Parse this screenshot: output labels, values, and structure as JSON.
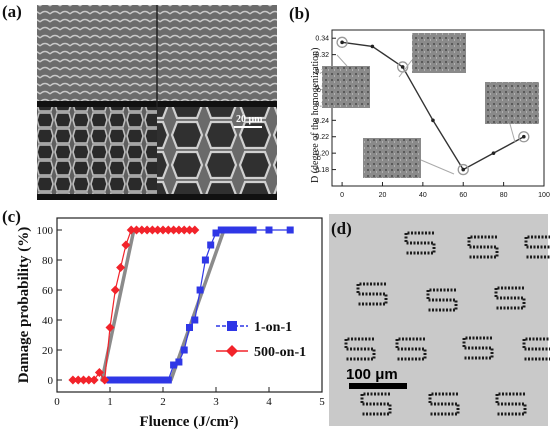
{
  "panel_labels": {
    "a": "(a)",
    "b": "(b)",
    "c": "(c)",
    "d": "(d)"
  },
  "sem_scale_label": "20 μm",
  "micrograph_scale_label": "100 μm",
  "colors": {
    "blue": "#2f37e6",
    "red": "#f2232a",
    "gray": "#777777",
    "dark_line": "#333333"
  },
  "chart_data": [
    {
      "id": "b",
      "type": "line",
      "ylabel": "D (degree of the homogenization)",
      "xlabel": "",
      "xlim": [
        -5,
        100
      ],
      "ylim": [
        0.16,
        0.35
      ],
      "xticks": [
        "0",
        "20",
        "40",
        "60",
        "80",
        "100"
      ],
      "yticks": [
        "0.18",
        "0.20",
        "0.22",
        "0.24",
        "0.26",
        "0.28",
        "0.30",
        "0.32",
        "0.34"
      ],
      "series": [
        {
          "x": [
            0,
            15,
            30,
            45,
            60,
            75,
            90
          ],
          "y": [
            0.335,
            0.33,
            0.305,
            0.24,
            0.18,
            0.2,
            0.22
          ]
        }
      ],
      "highlighted_x": [
        0,
        30,
        60,
        90
      ],
      "grid": false,
      "insets": "SEM images at highlighted points"
    },
    {
      "id": "c",
      "type": "line",
      "xlabel": "Fluence (J/cm²)",
      "ylabel": "Damage probability (%)",
      "xlim": [
        0,
        5
      ],
      "ylim": [
        -8,
        108
      ],
      "xticks": [
        "0",
        "1",
        "2",
        "3",
        "4",
        "5"
      ],
      "yticks": [
        "0",
        "20",
        "40",
        "60",
        "80",
        "100"
      ],
      "legend_position": "center-right",
      "series": [
        {
          "name": "1-on-1",
          "color": "#2f37e6",
          "marker": "square",
          "x": [
            1.0,
            1.1,
            1.2,
            1.3,
            1.4,
            1.5,
            1.6,
            1.7,
            1.8,
            1.9,
            2.0,
            2.1,
            2.2,
            2.3,
            2.4,
            2.5,
            2.6,
            2.7,
            2.8,
            2.9,
            3.0,
            3.1,
            3.2,
            3.3,
            3.4,
            3.5,
            3.6,
            3.7,
            4.0,
            4.4
          ],
          "y": [
            0,
            0,
            0,
            0,
            0,
            0,
            0,
            0,
            0,
            0,
            0,
            0,
            10,
            12,
            20,
            35,
            40,
            60,
            80,
            90,
            98,
            100,
            100,
            100,
            100,
            100,
            100,
            100,
            100,
            100
          ]
        },
        {
          "name": "500-on-1",
          "color": "#f2232a",
          "marker": "diamond",
          "x": [
            0.3,
            0.4,
            0.5,
            0.6,
            0.7,
            0.8,
            0.9,
            1.0,
            1.1,
            1.2,
            1.3,
            1.4,
            1.5,
            1.6,
            1.7,
            1.8,
            1.9,
            2.0,
            2.1,
            2.2,
            2.3,
            2.4,
            2.5,
            2.6
          ],
          "y": [
            0,
            0,
            0,
            0,
            0,
            5,
            0,
            35,
            60,
            75,
            90,
            100,
            100,
            100,
            100,
            100,
            100,
            100,
            100,
            100,
            100,
            100,
            100,
            100
          ]
        }
      ],
      "fit_lines": [
        {
          "x": [
            0.85,
            1.45
          ],
          "y": [
            0,
            100
          ]
        },
        {
          "x": [
            2.15,
            3.15
          ],
          "y": [
            0,
            100
          ]
        }
      ],
      "grid": false
    }
  ]
}
